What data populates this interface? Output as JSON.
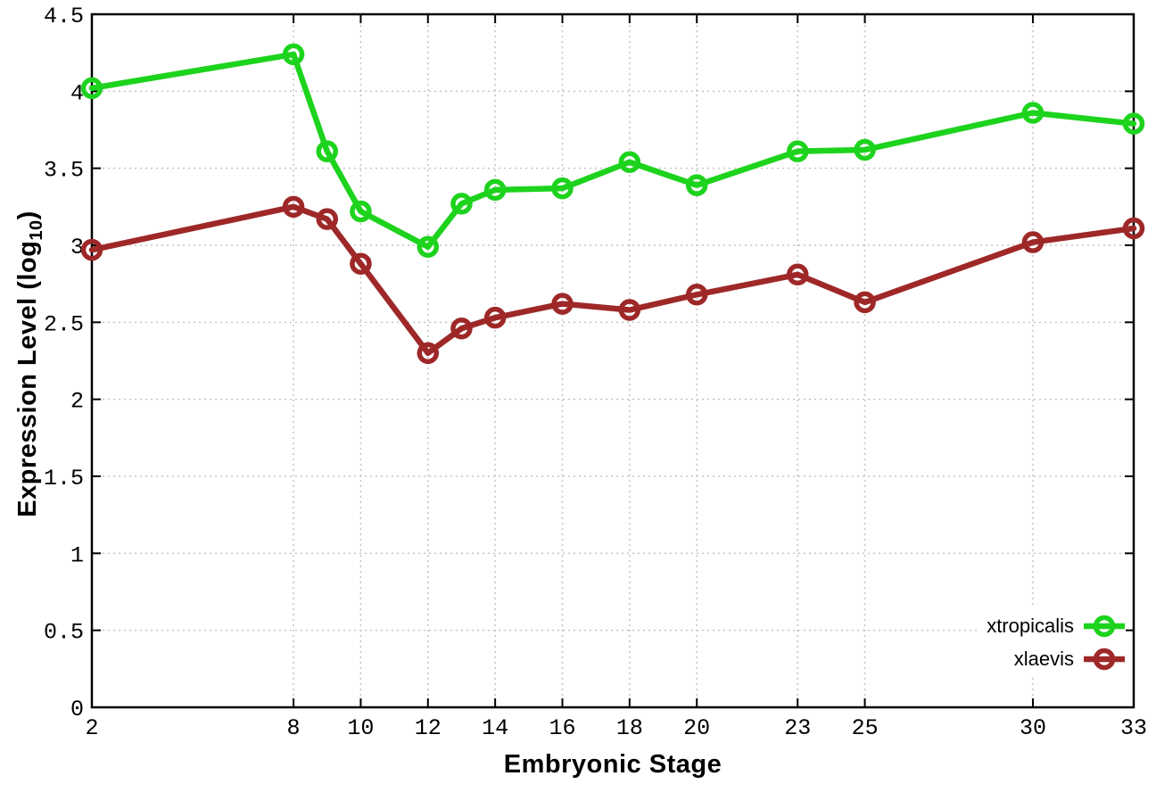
{
  "chart_data": {
    "type": "line",
    "title": "",
    "xlabel": "Embryonic Stage",
    "ylabel": "Expression Level (log10)",
    "ylabel_parts": {
      "main": "Expression Level (log",
      "sub": "10",
      "close": ")"
    },
    "xlim": [
      2,
      33
    ],
    "ylim": [
      0,
      4.5
    ],
    "xticks": [
      2,
      8,
      10,
      12,
      14,
      16,
      18,
      20,
      23,
      25,
      30,
      33
    ],
    "yticks": [
      0,
      0.5,
      1,
      1.5,
      2,
      2.5,
      3,
      3.5,
      4,
      4.5
    ],
    "ytick_labels": [
      "0",
      "0.5",
      "1",
      "1.5",
      "2",
      "2.5",
      "3",
      "3.5",
      "4",
      "4.5"
    ],
    "grid": true,
    "legend_position": "bottom-right",
    "marker": "open-circle",
    "x": [
      2,
      8,
      9,
      10,
      12,
      13,
      14,
      16,
      18,
      20,
      23,
      25,
      30,
      33
    ],
    "series": [
      {
        "name": "xtropicalis",
        "color": "#1dd31d",
        "values": [
          4.02,
          4.24,
          3.61,
          3.22,
          2.99,
          3.27,
          3.36,
          3.37,
          3.54,
          3.39,
          3.61,
          3.62,
          3.86,
          3.79
        ]
      },
      {
        "name": "xlaevis",
        "color": "#9e2828",
        "values": [
          2.97,
          3.25,
          3.17,
          2.88,
          2.3,
          2.46,
          2.53,
          2.62,
          2.58,
          2.68,
          2.81,
          2.63,
          3.02,
          3.11
        ]
      }
    ]
  },
  "colors": {
    "grid": "#c4c4c4",
    "axis": "#000000",
    "text": "#000000",
    "background": "#ffffff"
  }
}
